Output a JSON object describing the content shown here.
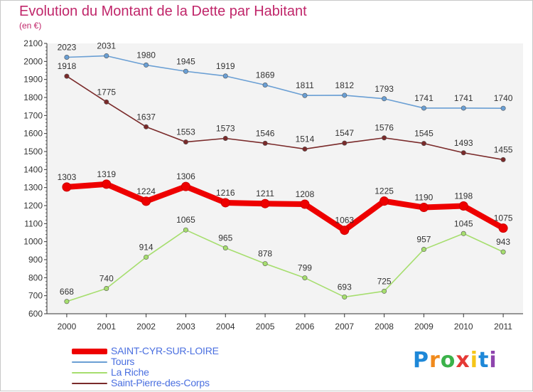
{
  "header": {
    "title": "Evolution du Montant de la Dette par Habitant",
    "unit": "(en €)"
  },
  "chart_data": {
    "type": "line",
    "x": [
      "2000",
      "2001",
      "2002",
      "2003",
      "2004",
      "2005",
      "2006",
      "2007",
      "2008",
      "2009",
      "2010",
      "2011"
    ],
    "ylim": [
      600,
      2100
    ],
    "yticks": [
      600,
      700,
      800,
      900,
      1000,
      1100,
      1200,
      1300,
      1400,
      1500,
      1600,
      1700,
      1800,
      1900,
      2000,
      2100
    ],
    "grid": false,
    "legend_position": "bottom-left",
    "series": [
      {
        "name": "SAINT-CYR-SUR-LOIRE",
        "color": "#ee0000",
        "values": [
          1303,
          1319,
          1224,
          1306,
          1216,
          1211,
          1208,
          1063,
          1225,
          1190,
          1198,
          1075
        ]
      },
      {
        "name": "Tours",
        "color": "#6a9fd4",
        "values": [
          2023,
          2031,
          1980,
          1945,
          1919,
          1869,
          1811,
          1812,
          1793,
          1741,
          1741,
          1740
        ]
      },
      {
        "name": "La Riche",
        "color": "#a6de6e",
        "values": [
          668,
          740,
          914,
          1065,
          965,
          878,
          799,
          693,
          725,
          957,
          1045,
          943
        ]
      },
      {
        "name": "Saint-Pierre-des-Corps",
        "color": "#7a2a2a",
        "values": [
          1918,
          1775,
          1637,
          1553,
          1573,
          1546,
          1514,
          1547,
          1576,
          1545,
          1493,
          1455
        ]
      }
    ]
  },
  "logo": {
    "letters": [
      "P",
      "r",
      "o",
      "x",
      "i",
      "t",
      "i"
    ],
    "colors": [
      "#1e88d8",
      "#f08a1c",
      "#3bb24a",
      "#e53935",
      "#f5c518",
      "#1e88d8",
      "#8e44ad"
    ]
  }
}
